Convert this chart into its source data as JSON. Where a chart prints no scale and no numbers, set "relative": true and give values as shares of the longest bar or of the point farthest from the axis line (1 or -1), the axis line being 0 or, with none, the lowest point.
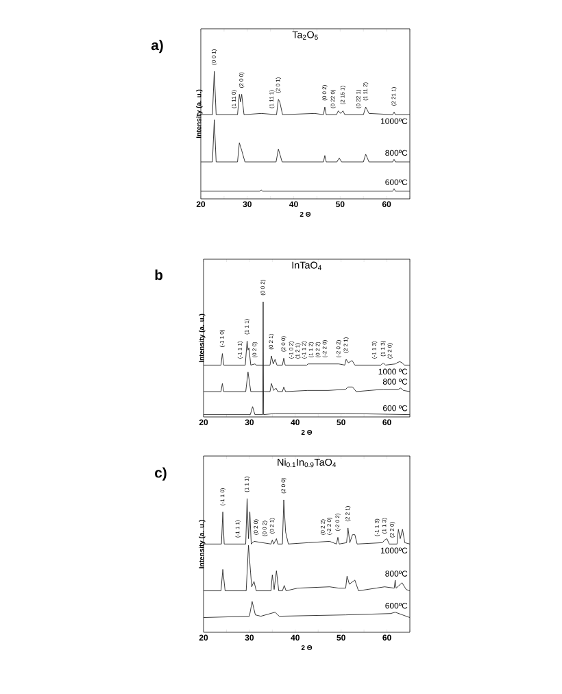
{
  "chart_data": [
    {
      "type": "line",
      "title": "a)",
      "subtitle": "Ta$_{2}$O$_{5}$",
      "xlabel": "2 Θ",
      "ylabel": "Intensity (a. u.)",
      "relative": true,
      "xlim": [
        20,
        65
      ],
      "xticks": [
        20,
        {
          "value": 25,
          "label": null
        },
        30,
        {
          "value": 35,
          "label": null
        },
        40,
        {
          "value": 45,
          "label": null
        },
        50,
        {
          "value": 55,
          "label": null
        },
        60,
        {
          "value": 65,
          "label": null
        }
      ],
      "series": [
        {
          "name": "1000ºC",
          "color": "#222222",
          "x": [
            20,
            22.5,
            22.9,
            23.3,
            27.9,
            28.3,
            28.55,
            28.8,
            29.3,
            33,
            36.3,
            36.7,
            37.0,
            37.6,
            44.5,
            46.4,
            46.7,
            47.0,
            49.2,
            49.6,
            50.1,
            50.6,
            51.0,
            55.0,
            55.5,
            56.2,
            61.3,
            61.6,
            61.9,
            65
          ],
          "values": [
            0.66,
            0.66,
            1.0,
            0.66,
            0.66,
            0.82,
            0.76,
            0.82,
            0.66,
            0.67,
            0.66,
            0.78,
            0.76,
            0.66,
            0.67,
            0.66,
            0.72,
            0.66,
            0.66,
            0.69,
            0.67,
            0.69,
            0.66,
            0.66,
            0.72,
            0.67,
            0.66,
            0.68,
            0.66,
            0.66
          ]
        },
        {
          "name": "800ºC",
          "color": "#222222",
          "x": [
            20,
            22.5,
            22.9,
            23.3,
            27.9,
            28.3,
            28.8,
            29.5,
            36.2,
            36.7,
            37.5,
            46.4,
            46.7,
            47.0,
            49.3,
            49.8,
            50.3,
            55.0,
            55.5,
            56.2,
            61.3,
            61.6,
            61.9,
            65
          ],
          "values": [
            0.29,
            0.29,
            0.62,
            0.29,
            0.29,
            0.44,
            0.38,
            0.29,
            0.29,
            0.39,
            0.29,
            0.29,
            0.34,
            0.29,
            0.29,
            0.32,
            0.29,
            0.29,
            0.35,
            0.29,
            0.29,
            0.31,
            0.29,
            0.29
          ]
        },
        {
          "name": "600ºC",
          "color": "#222222",
          "x": [
            20,
            32.7,
            33,
            33.3,
            61.3,
            61.6,
            61.9,
            65
          ],
          "values": [
            0.06,
            0.06,
            0.07,
            0.06,
            0.06,
            0.08,
            0.06,
            0.06
          ]
        }
      ],
      "annotations": [
        {
          "text": "(0 0 1)",
          "x": 22.9,
          "y": 1.0
        },
        {
          "text": "(1 11 0)",
          "x": 27.2,
          "y": 0.66
        },
        {
          "text": "(2 0 0)",
          "x": 28.8,
          "y": 0.82
        },
        {
          "text": "(1 11 1)",
          "x": 35.3,
          "y": 0.66
        },
        {
          "text": "(2 0 1)",
          "x": 36.7,
          "y": 0.78
        },
        {
          "text": "(0 0 2)",
          "x": 46.7,
          "y": 0.72
        },
        {
          "text": "(0 22 0)",
          "x": 48.5,
          "y": 0.66
        },
        {
          "text": "(2 15 1)",
          "x": 50.6,
          "y": 0.69
        },
        {
          "text": "(0 22 1)",
          "x": 54.0,
          "y": 0.66
        },
        {
          "text": "(1 11 2)",
          "x": 55.5,
          "y": 0.72
        },
        {
          "text": "(2 21 1)",
          "x": 61.6,
          "y": 0.68
        }
      ]
    },
    {
      "type": "line",
      "title": "b",
      "subtitle": "InTaO$_{4}$",
      "xlabel": "2 Θ",
      "ylabel": "Intensity (a. u.)",
      "relative": true,
      "xlim": [
        20,
        65
      ],
      "xticks": [
        20,
        {
          "value": 25,
          "label": null
        },
        30,
        {
          "value": 35,
          "label": null
        },
        40,
        {
          "value": 45,
          "label": null
        },
        50,
        {
          "value": 55,
          "label": null
        },
        60,
        {
          "value": 65,
          "label": null
        }
      ],
      "series": [
        {
          "name": "1000 ºC",
          "color": "#222222",
          "x": [
            20,
            23.8,
            24.1,
            24.4,
            29.1,
            29.5,
            29.7,
            29.9,
            30.3,
            31.2,
            31.5,
            34.5,
            34.8,
            35.2,
            35.6,
            36.0,
            37.2,
            37.5,
            37.8,
            42.5,
            42.8,
            47.2,
            49.5,
            50.8,
            51.1,
            51.6,
            52.4,
            53.0,
            58.7,
            59.2,
            59.7,
            61.8,
            62.2,
            62.8,
            63.3,
            63.8,
            65
          ],
          "values": [
            0.45,
            0.45,
            0.55,
            0.45,
            0.45,
            0.66,
            0.58,
            0.6,
            0.45,
            0.46,
            0.45,
            0.45,
            0.53,
            0.46,
            0.5,
            0.45,
            0.45,
            0.51,
            0.45,
            0.45,
            0.46,
            0.46,
            0.46,
            0.45,
            0.5,
            0.47,
            0.49,
            0.45,
            0.45,
            0.47,
            0.45,
            0.46,
            0.47,
            0.48,
            0.47,
            0.45,
            0.45
          ]
        },
        {
          "name": "800 ºC",
          "color": "#222222",
          "x": [
            20,
            23.8,
            24.1,
            24.4,
            29.2,
            29.7,
            30.3,
            34.5,
            34.8,
            35.3,
            35.8,
            36.2,
            37.2,
            37.5,
            37.9,
            42.7,
            47.2,
            51.0,
            51.5,
            52.5,
            53.3,
            59.2,
            62.5,
            63.0,
            63.6,
            65
          ],
          "values": [
            0.22,
            0.22,
            0.29,
            0.22,
            0.22,
            0.39,
            0.22,
            0.22,
            0.29,
            0.23,
            0.25,
            0.22,
            0.22,
            0.26,
            0.22,
            0.23,
            0.23,
            0.24,
            0.26,
            0.26,
            0.22,
            0.24,
            0.24,
            0.25,
            0.23,
            0.22
          ]
        },
        {
          "name": "600 ºC",
          "color": "#222222",
          "x": [
            20,
            30.2,
            30.7,
            31.2,
            32.9,
            33.0,
            33.1,
            35.6,
            51,
            65
          ],
          "values": [
            0.02,
            0.02,
            0.09,
            0.02,
            0.02,
            1.0,
            0.02,
            0.03,
            0.03,
            0.02
          ]
        }
      ],
      "annotations": [
        {
          "text": "(-1 1 0)",
          "x": 24.1,
          "y": 0.55
        },
        {
          "text": "(-1 1 1)",
          "x": 28.0,
          "y": 0.45
        },
        {
          "text": "(1 1 1)",
          "x": 29.5,
          "y": 0.66
        },
        {
          "text": "(0 2 0)",
          "x": 31.2,
          "y": 0.46
        },
        {
          "text": "(0 0 2)",
          "x": 33.0,
          "y": 1.0
        },
        {
          "text": "(0 2 1)",
          "x": 34.8,
          "y": 0.53
        },
        {
          "text": "(2 0 0)",
          "x": 37.5,
          "y": 0.51
        },
        {
          "text": "(-1 0 2)",
          "x": 39.2,
          "y": 0.45
        },
        {
          "text": "(1 2 1)",
          "x": 40.6,
          "y": 0.45
        },
        {
          "text": "(-1 1 2)",
          "x": 42.0,
          "y": 0.45
        },
        {
          "text": "(1 1 2)",
          "x": 43.5,
          "y": 0.46
        },
        {
          "text": "(0 2 2)",
          "x": 45.0,
          "y": 0.46
        },
        {
          "text": "(-2 2 0)",
          "x": 46.5,
          "y": 0.46
        },
        {
          "text": "(-2 0 2)",
          "x": 49.5,
          "y": 0.46
        },
        {
          "text": "(2 2 1)",
          "x": 51.1,
          "y": 0.5
        },
        {
          "text": "(-1 1 3)",
          "x": 57.3,
          "y": 0.45
        },
        {
          "text": "(1 1 3)",
          "x": 59.2,
          "y": 0.47
        },
        {
          "text": "(2 2 0)",
          "x": 60.7,
          "y": 0.45
        }
      ]
    },
    {
      "type": "line",
      "title": "c)",
      "subtitle": "Ni$_{0.1}$In$_{0.9}$TaO$_{4}$",
      "xlabel": "2 Θ",
      "ylabel": "Intensity (a. u.)",
      "relative": true,
      "xlim": [
        20,
        65
      ],
      "xticks": [
        20,
        {
          "value": 25,
          "label": null
        },
        30,
        {
          "value": 35,
          "label": null
        },
        40,
        {
          "value": 45,
          "label": null
        },
        50,
        {
          "value": 55,
          "label": null
        },
        60,
        {
          "value": 65,
          "label": null
        }
      ],
      "series": [
        {
          "name": "1000ºC",
          "color": "#222222",
          "x": [
            20,
            23.9,
            24.2,
            24.5,
            29.2,
            29.5,
            29.8,
            30.1,
            30.4,
            31.0,
            34.7,
            35.0,
            35.3,
            35.6,
            35.9,
            36.2,
            37.2,
            37.5,
            37.9,
            38.5,
            42.8,
            47.5,
            49.0,
            49.3,
            49.6,
            51.2,
            51.5,
            51.9,
            52.5,
            53.0,
            53.5,
            59.0,
            59.5,
            60.0,
            60.5,
            62.2,
            62.5,
            62.9,
            63.4,
            63.9,
            65
          ],
          "values": [
            0.66,
            0.66,
            0.9,
            0.66,
            0.66,
            1.0,
            0.7,
            0.9,
            0.66,
            0.68,
            0.66,
            0.69,
            0.66,
            0.68,
            0.7,
            0.66,
            0.66,
            0.99,
            0.75,
            0.66,
            0.67,
            0.68,
            0.66,
            0.71,
            0.66,
            0.67,
            0.78,
            0.67,
            0.73,
            0.73,
            0.66,
            0.67,
            0.69,
            0.7,
            0.66,
            0.66,
            0.77,
            0.7,
            0.77,
            0.67,
            0.66
          ]
        },
        {
          "name": "800ºC",
          "color": "#222222",
          "x": [
            20,
            23.8,
            24.2,
            24.7,
            29.3,
            29.8,
            30.5,
            31.0,
            31.5,
            34.7,
            35.0,
            35.4,
            35.9,
            36.4,
            37.2,
            37.6,
            38.0,
            40.5,
            47.5,
            49.5,
            51.0,
            51.3,
            51.8,
            52.6,
            53.0,
            53.8,
            59.5,
            61.6,
            61.8,
            62.0,
            63.3,
            64.2,
            65
          ],
          "values": [
            0.31,
            0.31,
            0.47,
            0.31,
            0.31,
            0.65,
            0.34,
            0.38,
            0.31,
            0.31,
            0.43,
            0.32,
            0.46,
            0.31,
            0.31,
            0.35,
            0.31,
            0.33,
            0.34,
            0.33,
            0.33,
            0.42,
            0.36,
            0.38,
            0.39,
            0.31,
            0.34,
            0.33,
            0.39,
            0.33,
            0.37,
            0.32,
            0.31
          ]
        },
        {
          "name": "600ºC",
          "color": "#222222",
          "x": [
            20,
            30.0,
            30.6,
            31.3,
            32.5,
            35.6,
            36.5,
            51,
            60.8,
            61.8,
            65
          ],
          "values": [
            0.11,
            0.12,
            0.23,
            0.13,
            0.12,
            0.15,
            0.12,
            0.13,
            0.14,
            0.15,
            0.11
          ]
        }
      ],
      "annotations": [
        {
          "text": "(-1 1 0)",
          "x": 24.2,
          "y": 0.9
        },
        {
          "text": "(-1 1 1)",
          "x": 27.5,
          "y": 0.66
        },
        {
          "text": "(1 1 1)",
          "x": 29.5,
          "y": 1.0
        },
        {
          "text": "(0 2 0)",
          "x": 31.5,
          "y": 0.68
        },
        {
          "text": "(0 0 2)",
          "x": 33.4,
          "y": 0.67
        },
        {
          "text": "(0 2 1)",
          "x": 35.0,
          "y": 0.69
        },
        {
          "text": "(2 0 0)",
          "x": 37.5,
          "y": 0.99
        },
        {
          "text": "(0 2 2)",
          "x": 46.1,
          "y": 0.68
        },
        {
          "text": "(-2 2 0)",
          "x": 47.5,
          "y": 0.68
        },
        {
          "text": "(-2 0 2)",
          "x": 49.3,
          "y": 0.71
        },
        {
          "text": "(2 2 1)",
          "x": 51.5,
          "y": 0.78
        },
        {
          "text": "(-1 1 3)",
          "x": 57.9,
          "y": 0.67
        },
        {
          "text": "(1 1 3)",
          "x": 59.5,
          "y": 0.69
        },
        {
          "text": "(2 2 0)",
          "x": 61.2,
          "y": 0.66
        }
      ]
    }
  ]
}
